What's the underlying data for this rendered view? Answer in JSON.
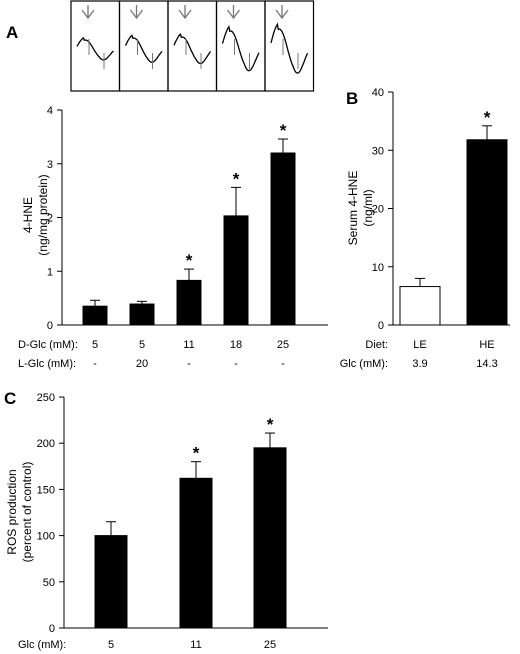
{
  "chart_data": [
    {
      "panel": "A",
      "type": "bar",
      "ylabel": "4-HNE\n(ng/mg protein)",
      "ylim": [
        0,
        4
      ],
      "yticks": [
        "0",
        "1",
        "2",
        "3",
        "4"
      ],
      "values": [
        0.35,
        0.39,
        0.83,
        2.03,
        3.2
      ],
      "errors": [
        0.11,
        0.05,
        0.21,
        0.53,
        0.26
      ],
      "significant": [
        false,
        false,
        true,
        true,
        true
      ],
      "star_symbol": "*",
      "bar_color": "#000000",
      "rows": [
        {
          "label": "D-Glc (mM):",
          "values": [
            "5",
            "5",
            "11",
            "18",
            "25"
          ]
        },
        {
          "label": "L-Glc (mM):",
          "values": [
            "-",
            "20",
            "-",
            "-",
            "-"
          ]
        }
      ],
      "inset": {
        "traces": 5,
        "arrow": "down-arrow-icon",
        "amplitudes": [
          0.45,
          0.55,
          0.6,
          0.9,
          1.0
        ]
      }
    },
    {
      "panel": "B",
      "type": "bar",
      "ylabel": "Serum 4-HNE\n(ng/ml)",
      "ylim": [
        0,
        40
      ],
      "yticks": [
        "0",
        "10",
        "20",
        "30",
        "40"
      ],
      "values": [
        6.6,
        31.8
      ],
      "errors": [
        1.4,
        2.4
      ],
      "significant": [
        false,
        true
      ],
      "star_symbol": "*",
      "bar_fills": [
        "#ffffff",
        "#000000"
      ],
      "rows": [
        {
          "label": "Diet:",
          "values": [
            "LE",
            "HE"
          ]
        },
        {
          "label": "Glc (mM):",
          "values": [
            "3.9",
            "14.3"
          ]
        }
      ]
    },
    {
      "panel": "C",
      "type": "bar",
      "ylabel": "ROS production\n(percent of control)",
      "ylim": [
        0,
        250
      ],
      "yticks": [
        "0",
        "50",
        "100",
        "150",
        "200",
        "250"
      ],
      "values": [
        100,
        162,
        195
      ],
      "errors": [
        15,
        18,
        16
      ],
      "significant": [
        false,
        true,
        true
      ],
      "star_symbol": "*",
      "bar_color": "#000000",
      "rows": [
        {
          "label": "Glc (mM):",
          "values": [
            "5",
            "11",
            "25"
          ]
        }
      ]
    }
  ]
}
